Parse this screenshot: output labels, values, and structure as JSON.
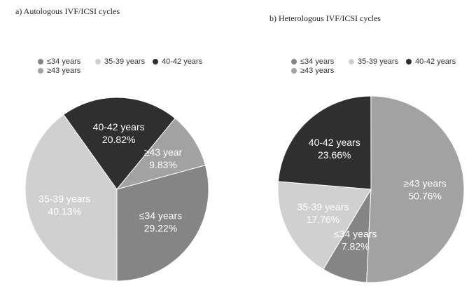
{
  "chart_data": [
    {
      "type": "pie",
      "title": "a) Autologous IVF/ICSI cycles",
      "categories": [
        "≤34 years",
        "35-39 years",
        "40-42 years",
        "≥43 years"
      ],
      "values": [
        29.22,
        40.13,
        20.82,
        9.83
      ],
      "value_labels": [
        "29.22%",
        "40.13%",
        "20.82%",
        "9.83%"
      ],
      "slice_labels": [
        "≤34 years",
        "35-39 years",
        "40-42 years",
        "≥43 year"
      ],
      "colors": [
        "#858585",
        "#d0d0d0",
        "#2f2f2f",
        "#a2a2a2"
      ],
      "legend": "top-left"
    },
    {
      "type": "pie",
      "title": "b) Heterologous IVF/ICSI cycles",
      "categories": [
        "≤34 years",
        "35-39 years",
        "40-42 years",
        "≥43 years"
      ],
      "values": [
        7.82,
        17.76,
        23.66,
        50.76
      ],
      "value_labels": [
        "7.82%",
        "17.76%",
        "23.66%",
        "50.76%"
      ],
      "slice_labels": [
        "≤34 years",
        "35-39 years",
        "40-42 years",
        "≥43 years"
      ],
      "colors": [
        "#858585",
        "#d0d0d0",
        "#2f2f2f",
        "#a2a2a2"
      ],
      "legend": "top-left"
    }
  ]
}
